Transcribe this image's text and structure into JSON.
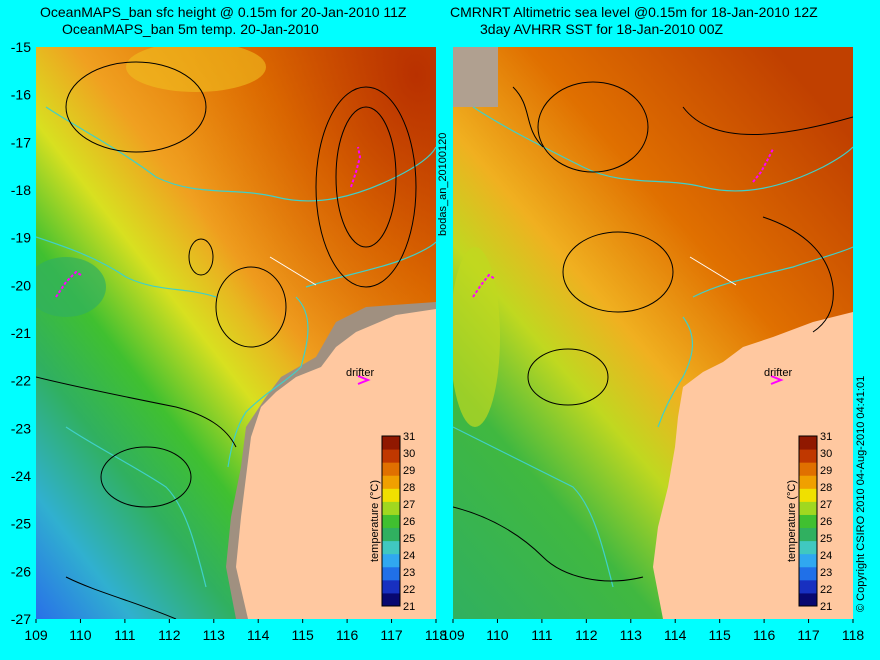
{
  "left_map": {
    "title_line1": "OceanMAPS_ban sfc height @ 0.15m for 20-Jan-2010 11Z",
    "title_line2": "OceanMAPS_ban 5m temp. 20-Jan-2010"
  },
  "right_map": {
    "title_line1": "CMRNRT Altimetric sea level  @0.15m  for 18-Jan-2010 12Z",
    "title_line2": "3day AVHRR SST for 18-Jan-2010 00Z"
  },
  "side_label": "bodas_an_20100120",
  "copyright": "© Copyright CSIRO 2010   04-Aug-2010 04:41:01",
  "drifter_label": "drifter",
  "axes": {
    "x_ticks": [
      "109",
      "110",
      "111",
      "112",
      "113",
      "114",
      "115",
      "116",
      "117",
      "118"
    ],
    "y_ticks": [
      "-15",
      "-16",
      "-17",
      "-18",
      "-19",
      "-20",
      "-21",
      "-22",
      "-23",
      "-24",
      "-25",
      "-26",
      "-27"
    ],
    "lon_range": [
      109,
      118
    ],
    "lat_range": [
      -27,
      -15
    ]
  },
  "colorbar": {
    "label": "temperature (°C)",
    "ticks": [
      "31",
      "30",
      "29",
      "28",
      "27",
      "26",
      "25",
      "24",
      "23",
      "22",
      "21"
    ],
    "colors": [
      "#080870",
      "#1830c0",
      "#2070e8",
      "#30a8f0",
      "#40c8c0",
      "#30b060",
      "#40c030",
      "#a0d820",
      "#f0e000",
      "#f0a000",
      "#e07000",
      "#c03800",
      "#901800"
    ]
  },
  "colors": {
    "background": "#00ffff",
    "land": "#ffc8a0",
    "contour": "#000000",
    "isobath": "#40d0c8",
    "drifter": "#ff00ff",
    "masked": "#a09080"
  }
}
